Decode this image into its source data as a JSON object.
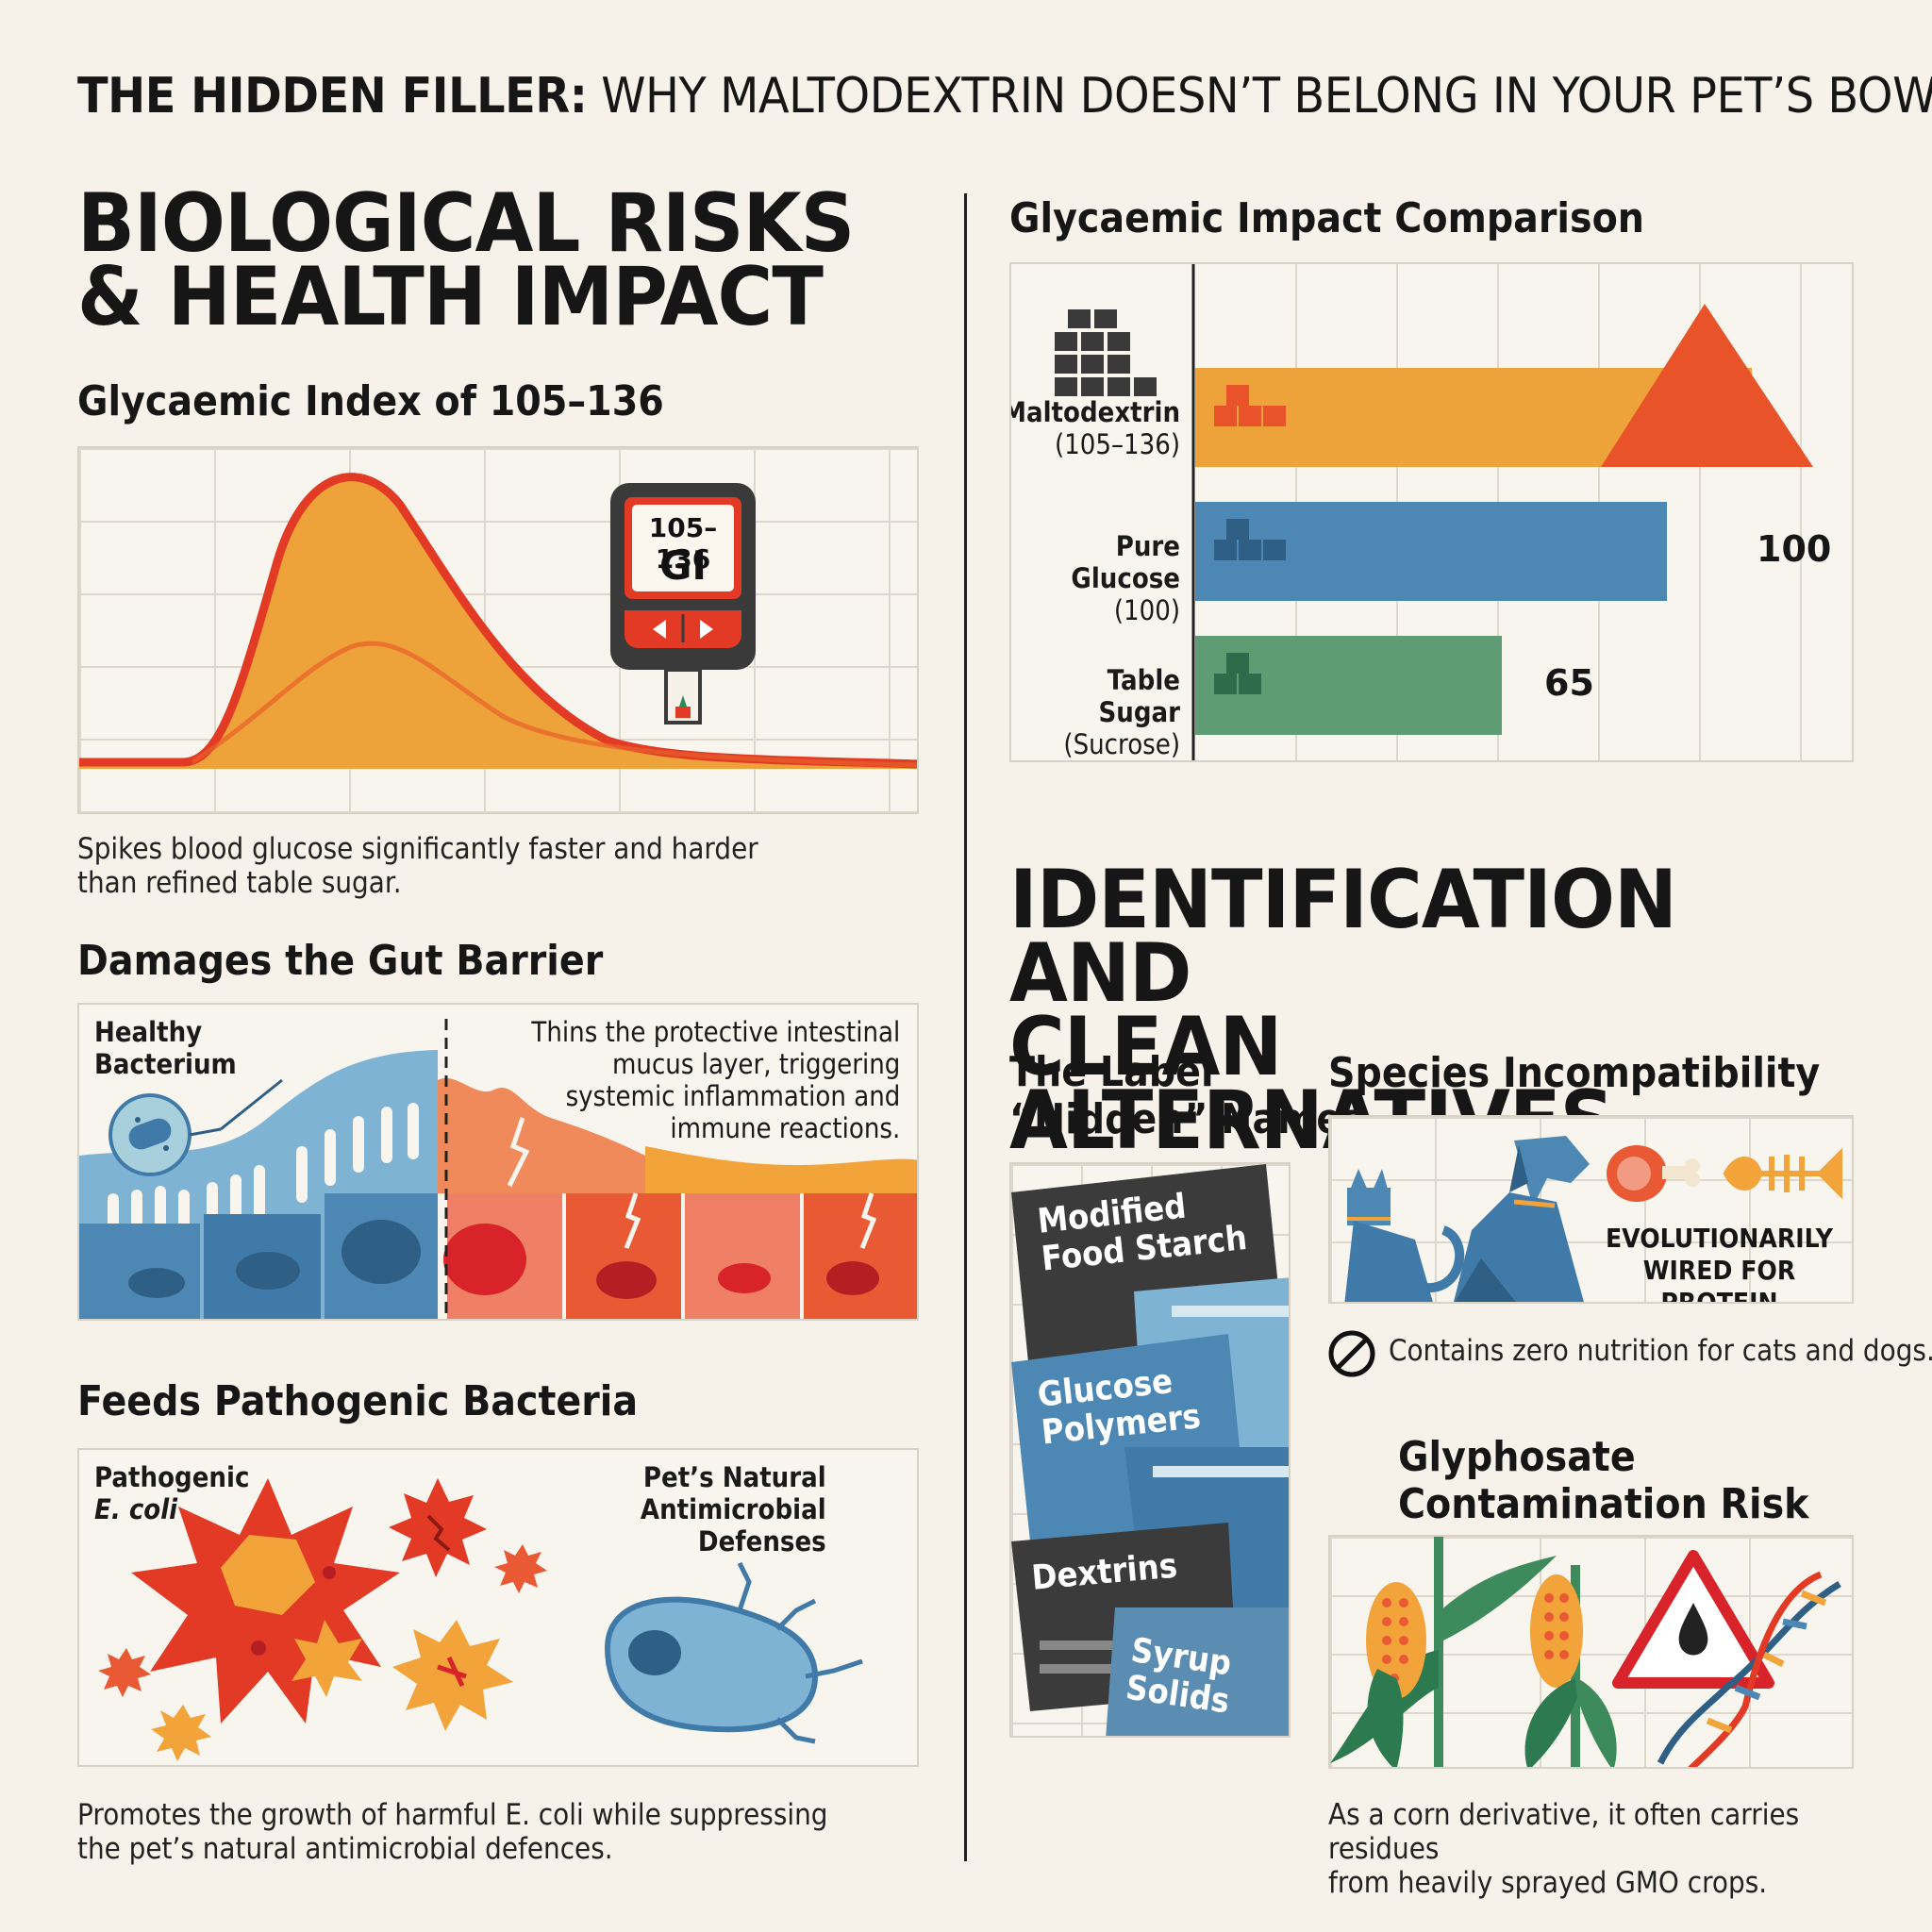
{
  "header": {
    "title_bold": "THE HIDDEN FILLER:",
    "title_rest": "WHY MALTODEXTRIN DOESN’T BELONG IN YOUR PET’S BOWL"
  },
  "left": {
    "section_title_line1": "BIOLOGICAL RISKS",
    "section_title_line2": "& HEALTH IMPACT",
    "gi": {
      "title": "Glycaemic Index of 105–136",
      "meter_range": "105–136",
      "meter_unit": "GI",
      "caption_line1": "Spikes blood glucose significantly faster and harder",
      "caption_line2": "than refined table sugar."
    },
    "gut": {
      "title": "Damages the Gut Barrier",
      "healthy_label_line1": "Healthy",
      "healthy_label_line2": "Bacterium",
      "desc_line1": "Thins the protective intestinal",
      "desc_line2": "mucus layer, triggering",
      "desc_line3": "systemic inflammation and",
      "desc_line4": "immune reactions."
    },
    "pathogen": {
      "title": "Feeds Pathogenic Bacteria",
      "ecoli_line1": "Pathogenic",
      "ecoli_line2": "E. coli",
      "defense_line1": "Pet’s Natural",
      "defense_line2": "Antimicrobial",
      "defense_line3": "Defenses",
      "caption_line1": "Promotes the growth of harmful E. coli while suppressing",
      "caption_line2": "the pet’s natural antimicrobial defences."
    }
  },
  "right": {
    "comparison": {
      "title": "Glycaemic Impact Comparison",
      "bars": [
        {
          "name_line1": "Maltodextrin",
          "name_line2": "(105–136)",
          "value_label": "",
          "color": "#eda23a"
        },
        {
          "name_line1": "Pure Glucose",
          "name_line2": "(100)",
          "value_label": "100",
          "color": "#4d88b5"
        },
        {
          "name_line1": "Table Sugar",
          "name_line2": "(Sucrose) (65)",
          "value_label": "65",
          "color": "#5f9c74"
        }
      ]
    },
    "section_title_line1": "IDENTIFICATION AND",
    "section_title_line2": "CLEAN ALTERNATIVES",
    "hidden_names": {
      "title_line1": "The Label",
      "title_line2": "“Hidden” Names",
      "cards": [
        {
          "line1": "Modified",
          "line2": "Food Starch"
        },
        {
          "line1": "Glucose",
          "line2": "Polymers"
        },
        {
          "line1": "Dextrins",
          "line2": ""
        },
        {
          "line1": "Syrup",
          "line2": "Solids"
        }
      ]
    },
    "species": {
      "title": "Species Incompatibility",
      "badge_line1": "EVOLUTIONARILY",
      "badge_line2": "WIRED FOR PROTEIN",
      "note": "Contains zero nutrition for cats and dogs."
    },
    "glyphosate": {
      "title_line1": "Glyphosate",
      "title_line2": "Contamination Risk",
      "caption_line1": "As a corn derivative, it often carries residues",
      "caption_line2": "from heavily sprayed GMO crops."
    }
  },
  "chart_data": {
    "type": "bar",
    "title": "Glycaemic Impact Comparison",
    "categories": [
      "Maltodextrin (105–136)",
      "Pure Glucose (100)",
      "Table Sugar (Sucrose) (65)"
    ],
    "values": [
      136,
      100,
      65
    ],
    "xlabel": "",
    "ylabel": "",
    "xlim": [
      0,
      140
    ],
    "grid": true,
    "colors": [
      "#eda23a",
      "#4d88b5",
      "#5f9c74"
    ]
  }
}
